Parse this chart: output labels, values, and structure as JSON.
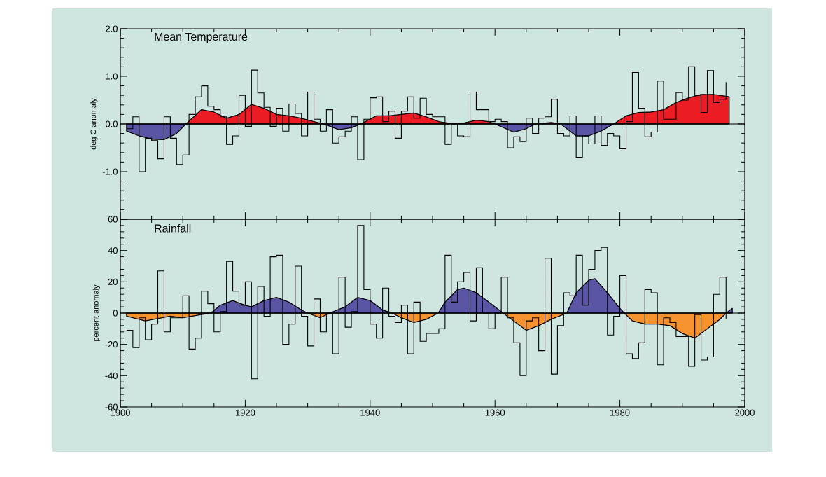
{
  "chart_data": [
    {
      "type": "step",
      "title": "Mean Temperature",
      "ylabel": "deg C anomaly",
      "xlim": [
        1900,
        2000
      ],
      "xticks": [
        1900,
        1920,
        1940,
        1960,
        1980,
        2000
      ],
      "ylim": [
        -2,
        2
      ],
      "yticks": [
        {
          "value": -2,
          "label": null
        },
        {
          "value": -1,
          "label": "-1.0"
        },
        {
          "value": 0,
          "label": "0.0"
        },
        {
          "value": 1,
          "label": "1.0"
        },
        {
          "value": 2,
          "label": "2.0"
        }
      ],
      "tick_labels": "y",
      "ref_lines": [
        {
          "axis": "y",
          "value": 0
        }
      ],
      "series": [
        {
          "type": "area",
          "color": "#ec1c24",
          "x": [
            1910.5,
            1913,
            1915,
            1917,
            1919,
            1921,
            1923,
            1925,
            1927,
            1929,
            1931,
            1932.5,
            1935,
            1937,
            1938.5,
            1941,
            1943,
            1945,
            1947,
            1949,
            1951,
            1953,
            1955,
            1957,
            1959,
            1960,
            1963,
            1965,
            1966.5,
            1969,
            1970.5,
            1973,
            1975,
            1977,
            1979,
            1981,
            1983,
            1985,
            1987,
            1989,
            1991,
            1993,
            1995,
            1997.5
          ],
          "values": [
            0,
            0.3,
            0.25,
            0.12,
            0.2,
            0.41,
            0.33,
            0.2,
            0.17,
            0.12,
            0.05,
            0,
            null,
            null,
            0,
            0.17,
            0.17,
            0.2,
            0.23,
            0.15,
            0.05,
            0.01,
            0.02,
            0.08,
            0.05,
            0,
            null,
            null,
            0,
            0.03,
            0,
            null,
            null,
            null,
            0,
            0.17,
            0.24,
            0.25,
            0.3,
            0.45,
            0.55,
            0.62,
            0.62,
            0.57
          ]
        },
        {
          "type": "area",
          "color": "#5a55a5",
          "x": [
            1901,
            1903,
            1905,
            1907,
            1909,
            1910.5,
            1913,
            1915,
            1917,
            1919,
            1921,
            1923,
            1925,
            1927,
            1929,
            1931,
            1932.5,
            1935,
            1937,
            1938.5,
            1941,
            1943,
            1945,
            1947,
            1949,
            1951,
            1953,
            1955,
            1957,
            1959,
            1960,
            1963,
            1965,
            1966.5,
            1969,
            1970.5,
            1973,
            1975,
            1977,
            1979
          ],
          "values": [
            -0.15,
            -0.25,
            -0.32,
            -0.33,
            -0.2,
            0,
            null,
            null,
            null,
            null,
            null,
            null,
            null,
            null,
            null,
            null,
            0,
            -0.12,
            -0.08,
            0,
            null,
            null,
            null,
            null,
            null,
            null,
            null,
            null,
            null,
            null,
            0,
            -0.17,
            -0.1,
            0,
            null,
            0,
            -0.25,
            -0.25,
            -0.15,
            0
          ]
        },
        {
          "color": "#000000",
          "x": [
            1901,
            1902,
            1903,
            1904,
            1905,
            1906,
            1907,
            1908,
            1909,
            1910,
            1911,
            1912,
            1913,
            1914,
            1915,
            1916,
            1917,
            1918,
            1919,
            1920,
            1921,
            1922,
            1923,
            1924,
            1925,
            1926,
            1927,
            1928,
            1929,
            1930,
            1931,
            1932,
            1933,
            1934,
            1935,
            1936,
            1937,
            1938,
            1939,
            1940,
            1941,
            1942,
            1943,
            1944,
            1945,
            1946,
            1947,
            1948,
            1949,
            1950,
            1951,
            1952,
            1953,
            1954,
            1955,
            1956,
            1957,
            1958,
            1959,
            1960,
            1961,
            1962,
            1963,
            1964,
            1965,
            1966,
            1967,
            1968,
            1969,
            1970,
            1971,
            1972,
            1973,
            1974,
            1975,
            1976,
            1977,
            1978,
            1979,
            1980,
            1981,
            1982,
            1983,
            1984,
            1985,
            1986,
            1987,
            1988,
            1989,
            1990,
            1991,
            1992,
            1993,
            1994,
            1995,
            1996,
            1997
          ],
          "values": [
            -0.1,
            0.15,
            -1.0,
            -0.3,
            -0.35,
            -0.73,
            0.15,
            -0.3,
            -0.85,
            -0.65,
            0.2,
            0.57,
            0.8,
            0.37,
            0.3,
            0.15,
            -0.43,
            -0.25,
            0.6,
            -0.05,
            1.13,
            0.65,
            0.35,
            -0.05,
            0.33,
            -0.15,
            0.42,
            0.22,
            -0.25,
            0.67,
            0.1,
            -0.15,
            0.3,
            -0.4,
            -0.27,
            -0.15,
            0.15,
            -0.75,
            0.1,
            0.55,
            0.57,
            0.05,
            0.27,
            -0.3,
            0.27,
            0.57,
            0.12,
            0.54,
            0.2,
            0.15,
            0.15,
            -0.43,
            0.0,
            -0.25,
            -0.27,
            0.67,
            0.3,
            0.3,
            0.05,
            0.1,
            0.05,
            -0.5,
            -0.27,
            -0.37,
            0.12,
            -0.2,
            0.12,
            0.15,
            0.52,
            -0.2,
            -0.25,
            0.17,
            -0.7,
            -0.25,
            -0.42,
            0.17,
            -0.45,
            -0.2,
            -0.25,
            -0.52,
            0.05,
            1.08,
            0.33,
            -0.27,
            -0.17,
            0.9,
            0.1,
            0.1,
            0.66,
            0.5,
            1.2,
            0.6,
            0.24,
            1.12,
            0.45,
            0.52,
            0.88
          ]
        }
      ]
    },
    {
      "type": "step",
      "title": "Rainfall",
      "ylabel": "percent anomaly",
      "xlim": [
        1900,
        2000
      ],
      "xticks": [
        1900,
        1920,
        1940,
        1960,
        1980,
        2000
      ],
      "ylim": [
        -60,
        60
      ],
      "yticks": [
        -60,
        -40,
        -20,
        0,
        20,
        40,
        60
      ],
      "ref_lines": [
        {
          "axis": "y",
          "value": 0
        }
      ],
      "series": [
        {
          "type": "area",
          "color": "#5a55a5",
          "x": [
            1914.5,
            1916,
            1918,
            1920,
            1921,
            1923,
            1925,
            1927,
            1929,
            1930,
            1932,
            1933.5,
            1936,
            1938,
            1940,
            1942,
            1943.5,
            1945,
            1947,
            1949,
            1950.9,
            1952,
            1954,
            1955,
            1957,
            1959,
            1961.3,
            1963,
            1965,
            1967,
            1969,
            1971.5,
            1973,
            1975,
            1976,
            1978,
            1980,
            1980.7,
            1982,
            1984,
            1986,
            1988,
            1990,
            1992,
            1994,
            1996,
            1997,
            1998
          ],
          "values": [
            0,
            5,
            8,
            5,
            4,
            8,
            10,
            7,
            2,
            0,
            null,
            0,
            4,
            10,
            8,
            2,
            0,
            null,
            null,
            null,
            0,
            7,
            15,
            16,
            13,
            7,
            0,
            null,
            null,
            null,
            null,
            0,
            13,
            21,
            22,
            13,
            3,
            0,
            null,
            null,
            null,
            null,
            null,
            null,
            null,
            null,
            0,
            3
          ]
        },
        {
          "type": "area",
          "color": "#f7932f",
          "x": [
            1901,
            1904,
            1908,
            1910,
            1913,
            1914.5,
            1916,
            1918,
            1920,
            1921,
            1923,
            1925,
            1927,
            1929,
            1930,
            1932,
            1933.5,
            1936,
            1938,
            1940,
            1942,
            1943.5,
            1945,
            1947,
            1949,
            1950.9,
            1952,
            1954,
            1955,
            1957,
            1959,
            1961.3,
            1963,
            1965,
            1967,
            1969,
            1971.5,
            1973,
            1975,
            1976,
            1978,
            1980,
            1980.7,
            1982,
            1984,
            1986,
            1988,
            1990,
            1992,
            1994,
            1996,
            1997
          ],
          "values": [
            -2,
            -5,
            -2,
            -3,
            -1,
            0,
            null,
            null,
            null,
            null,
            null,
            null,
            null,
            null,
            0,
            -3,
            0,
            null,
            null,
            null,
            null,
            0,
            -3,
            -6,
            -4,
            0,
            null,
            null,
            null,
            null,
            null,
            0,
            -5,
            -11,
            -8,
            -4,
            0,
            null,
            null,
            null,
            null,
            null,
            0,
            -5,
            -7,
            -7,
            -8,
            -13,
            -16,
            -10,
            -4,
            0
          ]
        },
        {
          "color": "#000000",
          "x": [
            1901,
            1902,
            1903,
            1904,
            1905,
            1906,
            1907,
            1908,
            1909,
            1910,
            1911,
            1912,
            1913,
            1914,
            1915,
            1916,
            1917,
            1918,
            1919,
            1920,
            1921,
            1922,
            1923,
            1924,
            1925,
            1926,
            1927,
            1928,
            1929,
            1930,
            1931,
            1932,
            1933,
            1934,
            1935,
            1936,
            1937,
            1938,
            1939,
            1940,
            1941,
            1942,
            1943,
            1944,
            1945,
            1946,
            1947,
            1948,
            1949,
            1950,
            1951,
            1952,
            1953,
            1954,
            1955,
            1956,
            1957,
            1958,
            1959,
            1960,
            1961,
            1962,
            1963,
            1964,
            1965,
            1966,
            1967,
            1968,
            1969,
            1970,
            1971,
            1972,
            1973,
            1974,
            1975,
            1976,
            1977,
            1978,
            1979,
            1980,
            1981,
            1982,
            1983,
            1984,
            1985,
            1986,
            1987,
            1988,
            1989,
            1990,
            1991,
            1992,
            1993,
            1994,
            1995,
            1996,
            1997
          ],
          "values": [
            -11,
            -22,
            -3,
            -17,
            -7,
            27,
            -12,
            -3,
            -3,
            11,
            -23,
            -16,
            14,
            6,
            -12,
            1,
            33,
            14,
            5,
            20,
            -42,
            17,
            -2,
            36,
            37,
            -20,
            -7,
            30,
            -2,
            -21,
            9,
            -12,
            0,
            -26,
            23,
            -9,
            1,
            56,
            15,
            -7,
            -16,
            16,
            -2,
            -6,
            5,
            -26,
            7,
            -18,
            -13,
            -13,
            -10,
            37,
            7,
            20,
            26,
            -5,
            29,
            0,
            -10,
            0,
            23,
            -3,
            -19,
            -40,
            -5,
            -3,
            -24,
            35,
            -39,
            -8,
            13,
            11,
            37,
            5,
            28,
            40,
            42,
            -14,
            -2,
            24,
            -26,
            -29,
            -19,
            15,
            13,
            -33,
            -3,
            -6,
            -15,
            -15,
            -34,
            -1,
            -30,
            -28,
            12,
            23,
            -4
          ]
        }
      ]
    }
  ]
}
